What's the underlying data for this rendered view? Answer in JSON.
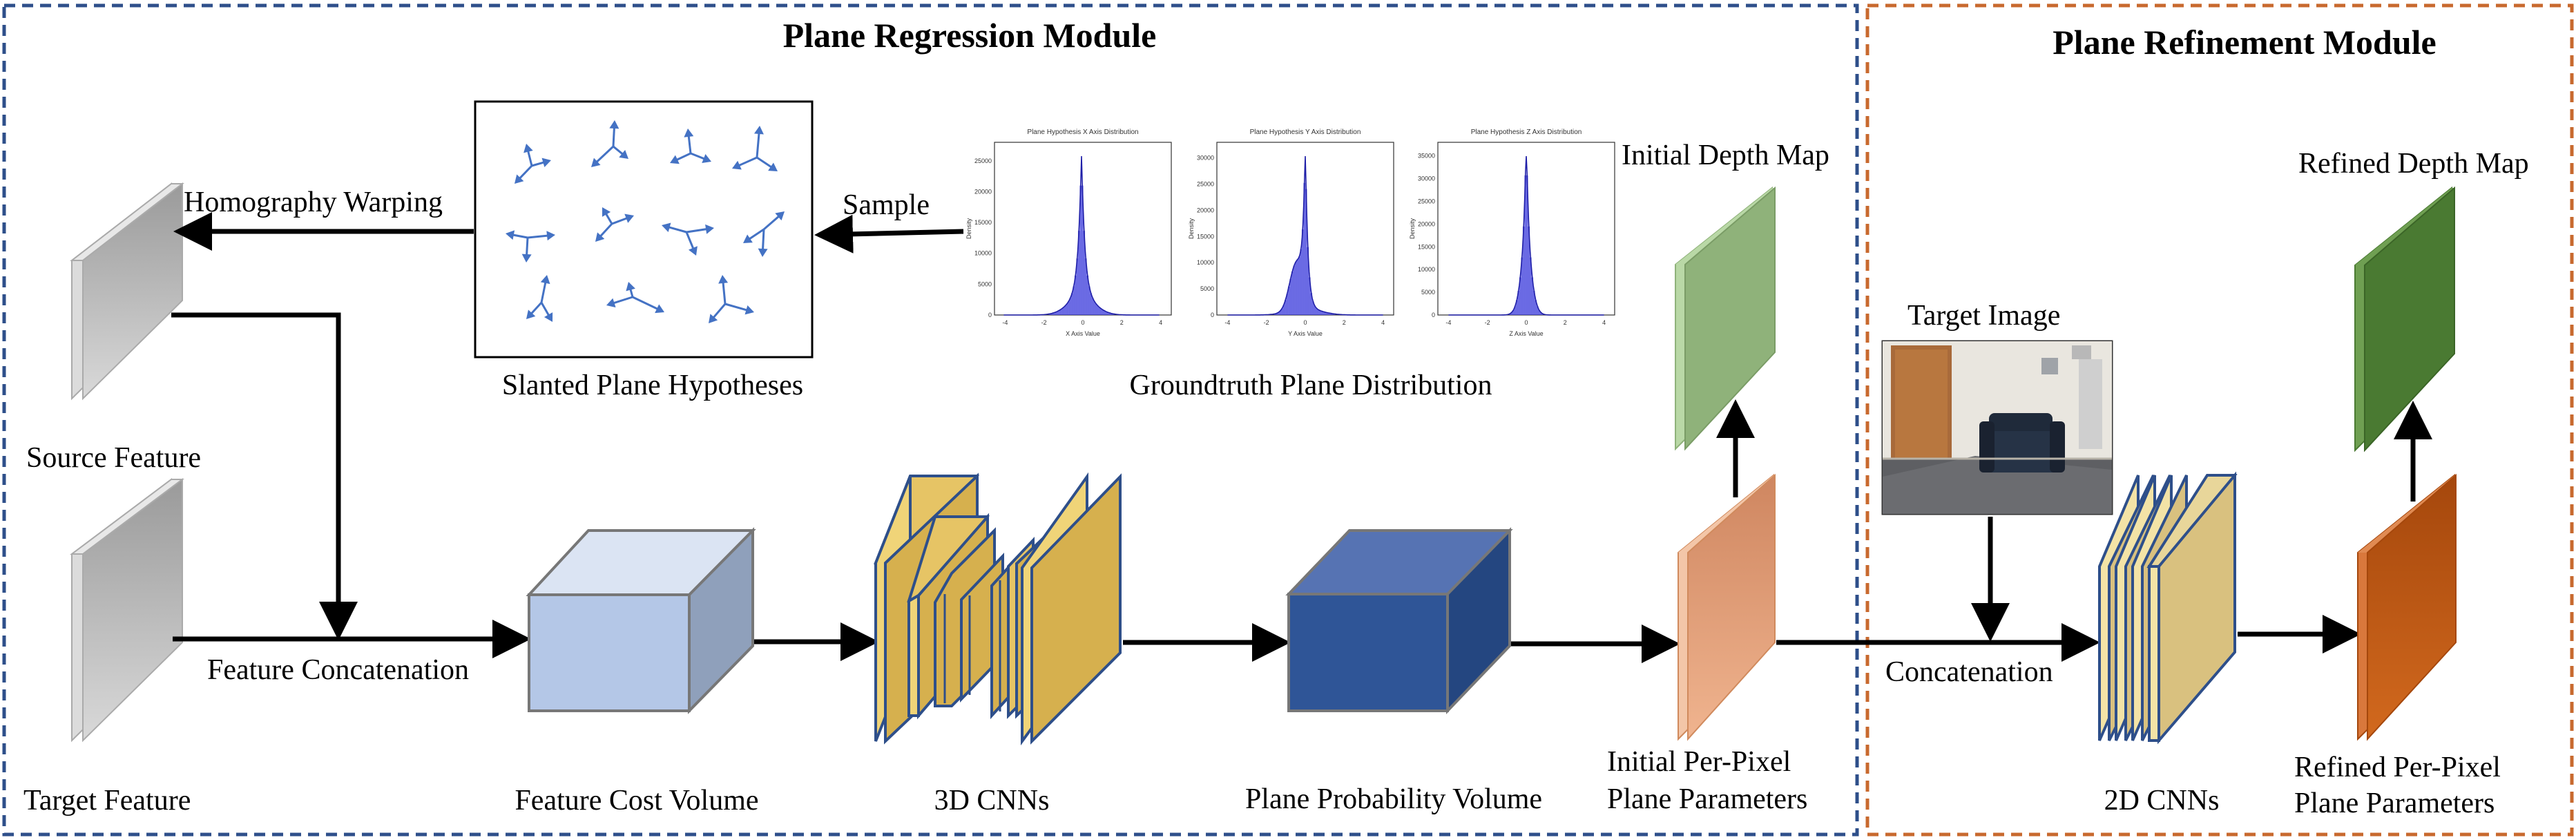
{
  "modules": {
    "regression_title": "Plane Regression Module",
    "refinement_title": "Plane Refinement Module"
  },
  "labels": {
    "source_feature": "Source Feature",
    "target_feature": "Target Feature",
    "homography_warping": "Homography Warping",
    "sample": "Sample",
    "slanted_plane_hypotheses": "Slanted Plane Hypotheses",
    "groundtruth_plane_distribution": "Groundtruth Plane Distribution",
    "feature_concatenation": "Feature Concatenation",
    "feature_cost_volume": "Feature Cost Volume",
    "cnn3d": "3D CNNs",
    "plane_probability_volume": "Plane Probability Volume",
    "initial_depth_map": "Initial Depth Map",
    "initial_params_line1": "Initial Per-Pixel",
    "initial_params_line2": "Plane Parameters",
    "target_image": "Target Image",
    "concatenation": "Concatenation",
    "cnn2d": "2D CNNs",
    "refined_depth_map": "Refined Depth Map",
    "refined_params_line1": "Refined Per-Pixel",
    "refined_params_line2": "Plane Parameters"
  },
  "histograms": [
    {
      "title": "Plane Hypothesis X Axis Distribution",
      "xlabel": "X Axis Value",
      "ylabel": "Density",
      "yticks": [
        "0",
        "5000",
        "10000",
        "15000",
        "20000",
        "25000"
      ],
      "xticks": [
        "-4",
        "-2",
        "0",
        "2",
        "4"
      ]
    },
    {
      "title": "Plane Hypothesis Y Axis Distribution",
      "xlabel": "Y Axis Value",
      "ylabel": "Density",
      "yticks": [
        "0",
        "5000",
        "10000",
        "15000",
        "20000",
        "25000",
        "30000"
      ],
      "xticks": [
        "-4",
        "-2",
        "0",
        "2",
        "4"
      ]
    },
    {
      "title": "Plane Hypothesis Z Axis Distribution",
      "xlabel": "Z Axis Value",
      "ylabel": "Density",
      "yticks": [
        "0",
        "5000",
        "10000",
        "15000",
        "20000",
        "25000",
        "30000",
        "35000"
      ],
      "xticks": [
        "-4",
        "-2",
        "0",
        "2",
        "4"
      ]
    }
  ],
  "colors": {
    "regression_border": "#2e4f8a",
    "refinement_border": "#c8692e",
    "feature_gray": "#b9b9b9",
    "cost_volume": "#b4c7e7",
    "probability_volume": "#2f5597",
    "cnn3d": "#d6b04e",
    "cnn2d": "#d9c17f",
    "initial_params": "#e6a27c",
    "refined_params": "#c55a11",
    "initial_depth": "#8fb27a",
    "refined_depth": "#4a7a32",
    "histogram_blue": "#3b3bdb"
  }
}
